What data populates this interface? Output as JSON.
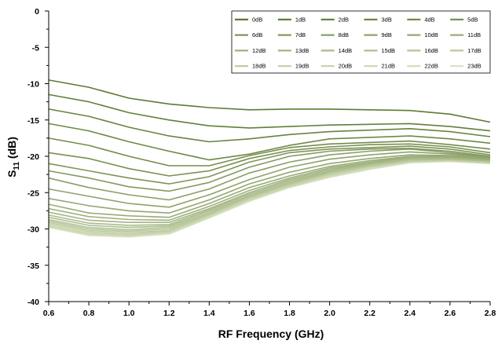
{
  "chart_data": {
    "type": "line",
    "title": "",
    "xlabel": "RF Frequency (GHz)",
    "ylabel_main": "S",
    "ylabel_sub": "11",
    "ylabel_unit": " (dB)",
    "xlim": [
      0.6,
      2.8
    ],
    "ylim": [
      -40,
      0
    ],
    "x_ticks": [
      "0.6",
      "0.8",
      "1.0",
      "1.2",
      "1.4",
      "1.6",
      "1.8",
      "2.0",
      "2.2",
      "2.4",
      "2.6",
      "2.8"
    ],
    "y_ticks": [
      "0",
      "-5",
      "-10",
      "-15",
      "-20",
      "-25",
      "-30",
      "-35",
      "-40"
    ],
    "grid": false,
    "legend_position": "top-right",
    "colors": {
      "dark": "#5e7a33",
      "light": "#d9e3c2"
    },
    "x": [
      0.6,
      0.8,
      1.0,
      1.2,
      1.4,
      1.6,
      1.8,
      2.0,
      2.2,
      2.4,
      2.6,
      2.8
    ],
    "series": [
      {
        "name": "0dB",
        "values": [
          -9.5,
          -10.5,
          -12.0,
          -12.8,
          -13.3,
          -13.6,
          -13.5,
          -13.5,
          -13.6,
          -13.7,
          -14.2,
          -15.3
        ]
      },
      {
        "name": "1dB",
        "values": [
          -11.5,
          -12.5,
          -14.0,
          -15.0,
          -15.8,
          -16.1,
          -15.9,
          -15.7,
          -15.6,
          -15.5,
          -15.9,
          -16.5
        ]
      },
      {
        "name": "2dB",
        "values": [
          -13.5,
          -14.5,
          -16.0,
          -17.2,
          -18.0,
          -17.6,
          -17.0,
          -16.6,
          -16.4,
          -16.2,
          -16.6,
          -17.3
        ]
      },
      {
        "name": "3dB",
        "values": [
          -15.5,
          -16.5,
          -18.0,
          -19.3,
          -20.5,
          -19.7,
          -18.5,
          -17.6,
          -17.4,
          -17.2,
          -17.6,
          -18.2
        ]
      },
      {
        "name": "4dB",
        "values": [
          -17.5,
          -18.5,
          -20.0,
          -21.3,
          -21.3,
          -19.9,
          -18.8,
          -18.3,
          -18.1,
          -17.9,
          -18.4,
          -19.0
        ]
      },
      {
        "name": "5dB",
        "values": [
          -19.5,
          -20.3,
          -21.7,
          -22.7,
          -22.0,
          -20.3,
          -19.2,
          -18.7,
          -18.4,
          -18.3,
          -18.7,
          -19.5
        ]
      },
      {
        "name": "6dB",
        "values": [
          -21.0,
          -22.0,
          -23.0,
          -23.8,
          -22.8,
          -20.8,
          -19.5,
          -19.0,
          -18.8,
          -18.6,
          -19.0,
          -19.8
        ]
      },
      {
        "name": "7dB",
        "values": [
          -22.0,
          -23.0,
          -24.2,
          -24.8,
          -23.6,
          -21.5,
          -20.0,
          -19.3,
          -19.0,
          -18.9,
          -19.3,
          -20.0
        ]
      },
      {
        "name": "8dB",
        "values": [
          -23.0,
          -24.3,
          -25.3,
          -26.0,
          -24.5,
          -22.3,
          -20.8,
          -19.8,
          -19.3,
          -19.0,
          -19.5,
          -20.1
        ]
      },
      {
        "name": "9dB",
        "values": [
          -24.5,
          -25.5,
          -26.5,
          -27.0,
          -25.3,
          -23.2,
          -21.5,
          -20.4,
          -19.8,
          -19.4,
          -19.7,
          -20.2
        ]
      },
      {
        "name": "10dB",
        "values": [
          -25.8,
          -26.8,
          -27.5,
          -27.8,
          -26.0,
          -23.8,
          -22.2,
          -21.0,
          -20.3,
          -19.8,
          -19.9,
          -20.3
        ]
      },
      {
        "name": "11dB",
        "values": [
          -26.6,
          -27.8,
          -28.2,
          -28.4,
          -26.5,
          -24.3,
          -22.7,
          -21.4,
          -20.6,
          -20.0,
          -20.0,
          -20.4
        ]
      },
      {
        "name": "12dB",
        "values": [
          -27.2,
          -28.3,
          -28.7,
          -28.8,
          -26.9,
          -24.7,
          -23.0,
          -21.6,
          -20.8,
          -20.1,
          -20.1,
          -20.5
        ]
      },
      {
        "name": "13dB",
        "values": [
          -27.7,
          -28.8,
          -29.1,
          -29.1,
          -27.2,
          -25.0,
          -23.2,
          -21.8,
          -20.9,
          -20.2,
          -20.2,
          -20.5
        ]
      },
      {
        "name": "14dB",
        "values": [
          -28.1,
          -29.2,
          -29.5,
          -29.4,
          -27.4,
          -25.2,
          -23.4,
          -22.0,
          -21.0,
          -20.3,
          -20.3,
          -20.6
        ]
      },
      {
        "name": "15dB",
        "values": [
          -28.4,
          -29.5,
          -29.8,
          -29.6,
          -27.6,
          -25.4,
          -23.6,
          -22.1,
          -21.1,
          -20.4,
          -20.3,
          -20.6
        ]
      },
      {
        "name": "16dB",
        "values": [
          -28.7,
          -29.8,
          -30.1,
          -29.8,
          -27.8,
          -25.5,
          -23.7,
          -22.2,
          -21.2,
          -20.5,
          -20.4,
          -20.7
        ]
      },
      {
        "name": "17dB",
        "values": [
          -28.9,
          -30.0,
          -30.3,
          -30.0,
          -27.9,
          -25.6,
          -23.8,
          -22.3,
          -21.3,
          -20.5,
          -20.4,
          -20.7
        ]
      },
      {
        "name": "18dB",
        "values": [
          -29.1,
          -30.2,
          -30.5,
          -30.2,
          -28.0,
          -25.7,
          -23.9,
          -22.4,
          -21.4,
          -20.6,
          -20.5,
          -20.8
        ]
      },
      {
        "name": "19dB",
        "values": [
          -29.3,
          -30.4,
          -30.7,
          -30.3,
          -28.1,
          -25.8,
          -24.0,
          -22.5,
          -21.4,
          -20.7,
          -20.5,
          -20.8
        ]
      },
      {
        "name": "20dB",
        "values": [
          -29.5,
          -30.6,
          -30.8,
          -30.4,
          -28.2,
          -25.9,
          -24.1,
          -22.6,
          -21.5,
          -20.7,
          -20.6,
          -20.9
        ]
      },
      {
        "name": "21dB",
        "values": [
          -29.6,
          -30.7,
          -30.9,
          -30.5,
          -28.3,
          -26.0,
          -24.2,
          -22.7,
          -21.6,
          -20.8,
          -20.6,
          -20.9
        ]
      },
      {
        "name": "22dB",
        "values": [
          -29.7,
          -30.8,
          -31.0,
          -30.6,
          -28.4,
          -26.1,
          -24.2,
          -22.8,
          -21.7,
          -20.8,
          -20.7,
          -21.0
        ]
      },
      {
        "name": "23dB",
        "values": [
          -29.8,
          -30.9,
          -31.1,
          -30.7,
          -28.5,
          -26.2,
          -24.3,
          -22.9,
          -21.8,
          -20.9,
          -20.7,
          -21.0
        ]
      }
    ]
  }
}
